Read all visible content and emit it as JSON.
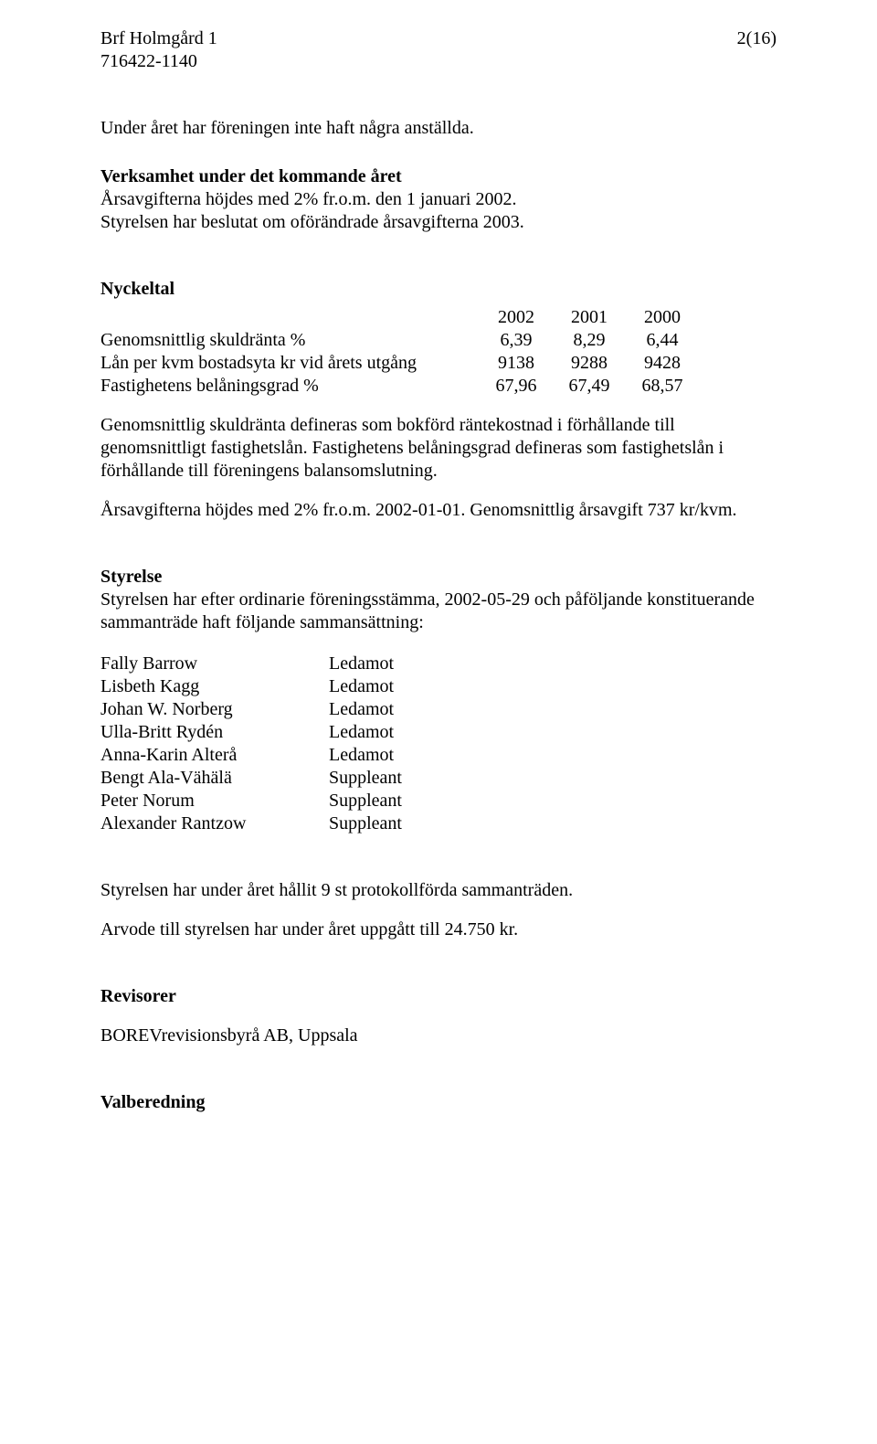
{
  "header": {
    "org_name": "Brf Holmgård 1",
    "org_number": "716422-1140",
    "page_number": "2(16)"
  },
  "intro_line": "Under året har föreningen inte haft några anställda.",
  "verksamhet": {
    "heading": "Verksamhet under det kommande året",
    "line1": "Årsavgifterna höjdes med 2% fr.o.m. den 1 januari 2002.",
    "line2": "Styrelsen har beslutat om oförändrade årsavgifterna 2003."
  },
  "nyckeltal": {
    "heading": "Nyckeltal",
    "years": [
      "2002",
      "2001",
      "2000"
    ],
    "rows": [
      {
        "label": "Genomsnittlig skuldränta %",
        "values": [
          "6,39",
          "8,29",
          "6,44"
        ]
      },
      {
        "label": "Lån per kvm bostadsyta kr vid årets utgång",
        "values": [
          "9138",
          "9288",
          "9428"
        ]
      },
      {
        "label": "Fastighetens belåningsgrad %",
        "values": [
          "67,96",
          "67,49",
          "68,57"
        ]
      }
    ],
    "note1": "Genomsnittlig skuldränta defineras som bokförd räntekostnad i förhållande till genomsnittligt fastighetslån. Fastighetens belåningsgrad defineras som fastighetslån i förhållande till föreningens balansomslutning.",
    "note2": "Årsavgifterna höjdes med 2% fr.o.m. 2002-01-01. Genomsnittlig årsavgift 737 kr/kvm."
  },
  "styrelse": {
    "heading": "Styrelse",
    "intro": "Styrelsen har efter ordinarie föreningsstämma, 2002-05-29 och påföljande konstituerande sammanträde haft följande sammansättning:",
    "members": [
      {
        "name": "Fally Barrow",
        "role": "Ledamot"
      },
      {
        "name": "Lisbeth Kagg",
        "role": "Ledamot"
      },
      {
        "name": "Johan W. Norberg",
        "role": "Ledamot"
      },
      {
        "name": "Ulla-Britt Rydén",
        "role": "Ledamot"
      },
      {
        "name": "Anna-Karin Alterå",
        "role": "Ledamot"
      },
      {
        "name": "Bengt Ala-Vähälä",
        "role": "Suppleant"
      },
      {
        "name": "Peter Norum",
        "role": "Suppleant"
      },
      {
        "name": "Alexander Rantzow",
        "role": "Suppleant"
      }
    ],
    "meetings_line": "Styrelsen har under året hållit 9 st protokollförda sammanträden.",
    "arvode_line": "Arvode till styrelsen har under året uppgått till 24.750 kr."
  },
  "revisorer": {
    "heading": "Revisorer",
    "line": "BOREVrevisionsbyrå AB, Uppsala"
  },
  "valberedning": {
    "heading": "Valberedning"
  }
}
